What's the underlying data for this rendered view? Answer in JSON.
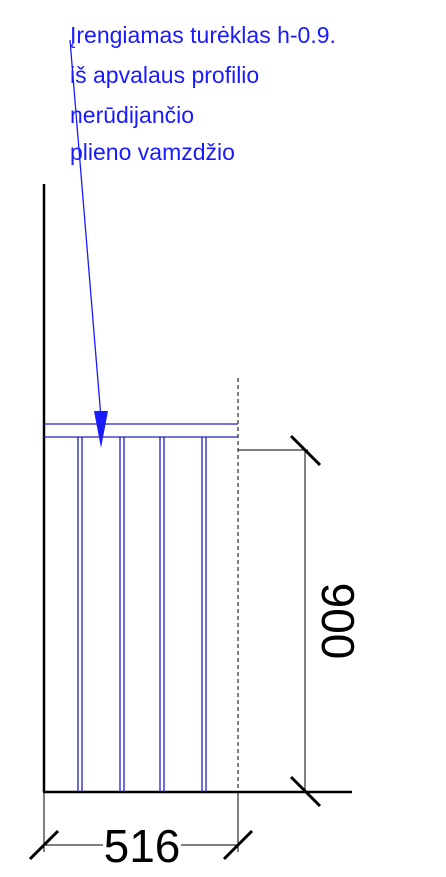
{
  "annotation": {
    "lines": [
      "Įrengiamas turėklas h-0.9.",
      "iš apvalaus profilio",
      "nerūdijančio",
      "plieno vamzdžio"
    ]
  },
  "dimensions": {
    "height": "900",
    "width": "516"
  },
  "colors": {
    "note": "#1a1aff",
    "railing": "#2020c8",
    "line": "#000000"
  }
}
